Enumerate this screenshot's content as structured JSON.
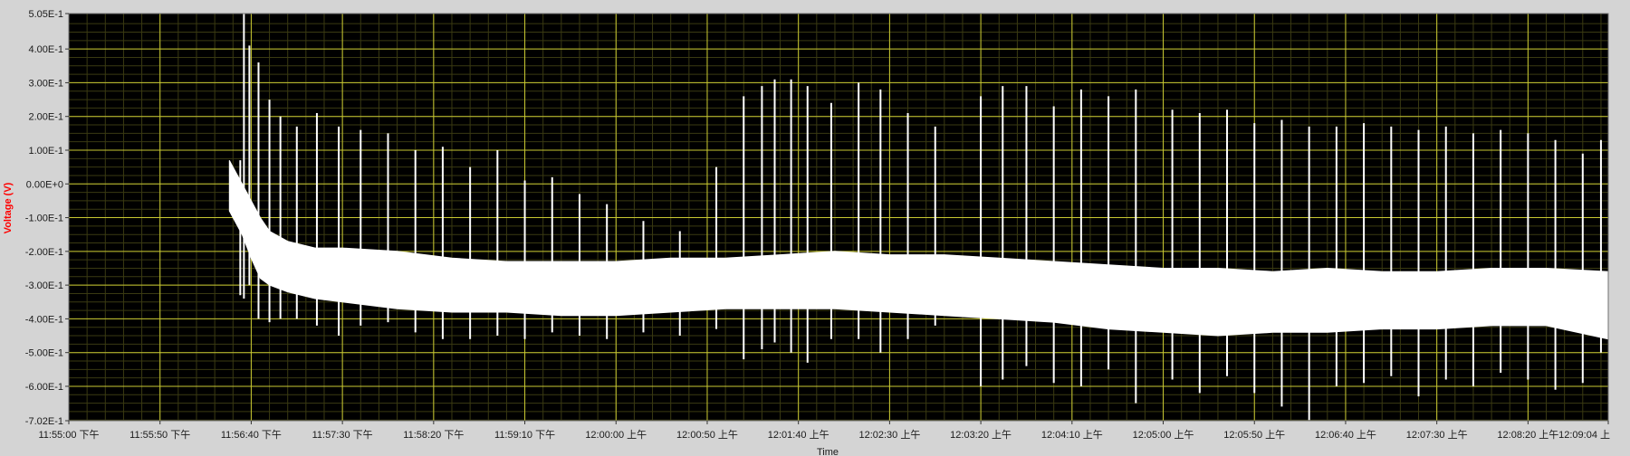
{
  "colors": {
    "frame": "#d4d4d4",
    "plot_background": "#000000",
    "major_grid": "#c8c832",
    "minor_grid": "#3a3a12",
    "trace": "#ffffff",
    "ylabel": "#ff0000"
  },
  "chart_data": {
    "type": "line",
    "title": "",
    "xlabel": "Time",
    "ylabel": "Voltage (V)",
    "ylim": [
      -0.702,
      0.505
    ],
    "y_ticks": [
      {
        "value": 0.505,
        "label": "5.05E-1"
      },
      {
        "value": 0.4,
        "label": "4.00E-1"
      },
      {
        "value": 0.3,
        "label": "3.00E-1"
      },
      {
        "value": 0.2,
        "label": "2.00E-1"
      },
      {
        "value": 0.1,
        "label": "1.00E-1"
      },
      {
        "value": 0.0,
        "label": "0.00E+0"
      },
      {
        "value": -0.1,
        "label": "-1.00E-1"
      },
      {
        "value": -0.2,
        "label": "-2.00E-1"
      },
      {
        "value": -0.3,
        "label": "-3.00E-1"
      },
      {
        "value": -0.4,
        "label": "-4.00E-1"
      },
      {
        "value": -0.5,
        "label": "-5.00E-1"
      },
      {
        "value": -0.6,
        "label": "-6.00E-1"
      },
      {
        "value": -0.702,
        "label": "-7.02E-1"
      }
    ],
    "x_ticks": [
      {
        "time": "23:55:00",
        "label": "11:55:00 下午"
      },
      {
        "time": "23:55:50",
        "label": "11:55:50 下午"
      },
      {
        "time": "23:56:40",
        "label": "11:56:40 下午"
      },
      {
        "time": "23:57:30",
        "label": "11:57:30 下午"
      },
      {
        "time": "23:58:20",
        "label": "11:58:20 下午"
      },
      {
        "time": "23:59:10",
        "label": "11:59:10 下午"
      },
      {
        "time": "24:00:00",
        "label": "12:00:00 上午"
      },
      {
        "time": "24:00:50",
        "label": "12:00:50 上午"
      },
      {
        "time": "24:01:40",
        "label": "12:01:40 上午"
      },
      {
        "time": "24:02:30",
        "label": "12:02:30 上午"
      },
      {
        "time": "24:03:20",
        "label": "12:03:20 上午"
      },
      {
        "time": "24:04:10",
        "label": "12:04:10 上午"
      },
      {
        "time": "24:05:00",
        "label": "12:05:00 上午"
      },
      {
        "time": "24:05:50",
        "label": "12:05:50 上午"
      },
      {
        "time": "24:06:40",
        "label": "12:06:40 上午"
      },
      {
        "time": "24:07:30",
        "label": "12:07:30 上午"
      },
      {
        "time": "24:08:20",
        "label": "12:08:20 上午"
      },
      {
        "time": "24:09:04",
        "label": "12:09:04 上"
      }
    ],
    "xlim": [
      "23:55:00",
      "24:09:04"
    ],
    "grid": true,
    "series": [
      {
        "band_upper": [
          {
            "t": "23:56:28",
            "v": 0.07
          },
          {
            "t": "23:56:35",
            "v": 0.0
          },
          {
            "t": "23:56:40",
            "v": -0.05
          },
          {
            "t": "23:56:45",
            "v": -0.1
          },
          {
            "t": "23:56:50",
            "v": -0.14
          },
          {
            "t": "23:57:00",
            "v": -0.17
          },
          {
            "t": "23:57:15",
            "v": -0.19
          },
          {
            "t": "23:57:30",
            "v": -0.19
          },
          {
            "t": "23:58:00",
            "v": -0.2
          },
          {
            "t": "23:58:30",
            "v": -0.22
          },
          {
            "t": "23:59:00",
            "v": -0.23
          },
          {
            "t": "23:59:30",
            "v": -0.23
          },
          {
            "t": "24:00:00",
            "v": -0.23
          },
          {
            "t": "24:00:30",
            "v": -0.22
          },
          {
            "t": "24:01:00",
            "v": -0.22
          },
          {
            "t": "24:01:30",
            "v": -0.21
          },
          {
            "t": "24:02:00",
            "v": -0.2
          },
          {
            "t": "24:02:30",
            "v": -0.21
          },
          {
            "t": "24:03:00",
            "v": -0.21
          },
          {
            "t": "24:03:30",
            "v": -0.22
          },
          {
            "t": "24:04:00",
            "v": -0.23
          },
          {
            "t": "24:04:30",
            "v": -0.24
          },
          {
            "t": "24:05:00",
            "v": -0.25
          },
          {
            "t": "24:05:30",
            "v": -0.25
          },
          {
            "t": "24:06:00",
            "v": -0.26
          },
          {
            "t": "24:06:30",
            "v": -0.25
          },
          {
            "t": "24:07:00",
            "v": -0.26
          },
          {
            "t": "24:07:30",
            "v": -0.26
          },
          {
            "t": "24:08:00",
            "v": -0.25
          },
          {
            "t": "24:08:30",
            "v": -0.25
          },
          {
            "t": "24:09:04",
            "v": -0.26
          }
        ],
        "band_lower": [
          {
            "t": "23:56:28",
            "v": -0.08
          },
          {
            "t": "23:56:35",
            "v": -0.15
          },
          {
            "t": "23:56:40",
            "v": -0.22
          },
          {
            "t": "23:56:45",
            "v": -0.28
          },
          {
            "t": "23:56:50",
            "v": -0.3
          },
          {
            "t": "23:57:00",
            "v": -0.32
          },
          {
            "t": "23:57:15",
            "v": -0.34
          },
          {
            "t": "23:57:30",
            "v": -0.35
          },
          {
            "t": "23:58:00",
            "v": -0.37
          },
          {
            "t": "23:58:30",
            "v": -0.38
          },
          {
            "t": "23:59:00",
            "v": -0.38
          },
          {
            "t": "23:59:30",
            "v": -0.39
          },
          {
            "t": "24:00:00",
            "v": -0.39
          },
          {
            "t": "24:00:30",
            "v": -0.38
          },
          {
            "t": "24:01:00",
            "v": -0.37
          },
          {
            "t": "24:01:30",
            "v": -0.37
          },
          {
            "t": "24:02:00",
            "v": -0.37
          },
          {
            "t": "24:02:30",
            "v": -0.38
          },
          {
            "t": "24:03:00",
            "v": -0.39
          },
          {
            "t": "24:03:30",
            "v": -0.4
          },
          {
            "t": "24:04:00",
            "v": -0.41
          },
          {
            "t": "24:04:30",
            "v": -0.43
          },
          {
            "t": "24:05:00",
            "v": -0.44
          },
          {
            "t": "24:05:30",
            "v": -0.45
          },
          {
            "t": "24:06:00",
            "v": -0.44
          },
          {
            "t": "24:06:30",
            "v": -0.44
          },
          {
            "t": "24:07:00",
            "v": -0.43
          },
          {
            "t": "24:07:30",
            "v": -0.43
          },
          {
            "t": "24:08:00",
            "v": -0.42
          },
          {
            "t": "24:08:30",
            "v": -0.42
          },
          {
            "t": "24:09:04",
            "v": -0.46
          }
        ],
        "spikes": [
          {
            "t": "23:56:34",
            "high": 0.07,
            "low": -0.33
          },
          {
            "t": "23:56:36",
            "high": 0.505,
            "low": -0.34
          },
          {
            "t": "23:56:39",
            "high": 0.41,
            "low": -0.3
          },
          {
            "t": "23:56:44",
            "high": 0.36,
            "low": -0.4
          },
          {
            "t": "23:56:50",
            "high": 0.25,
            "low": -0.41
          },
          {
            "t": "23:56:56",
            "high": 0.2,
            "low": -0.4
          },
          {
            "t": "23:57:05",
            "high": 0.17,
            "low": -0.4
          },
          {
            "t": "23:57:16",
            "high": 0.21,
            "low": -0.42
          },
          {
            "t": "23:57:28",
            "high": 0.17,
            "low": -0.45
          },
          {
            "t": "23:57:40",
            "high": 0.16,
            "low": -0.42
          },
          {
            "t": "23:57:55",
            "high": 0.15,
            "low": -0.41
          },
          {
            "t": "23:58:10",
            "high": 0.1,
            "low": -0.44
          },
          {
            "t": "23:58:25",
            "high": 0.11,
            "low": -0.46
          },
          {
            "t": "23:58:40",
            "high": 0.05,
            "low": -0.46
          },
          {
            "t": "23:58:55",
            "high": 0.1,
            "low": -0.45
          },
          {
            "t": "23:59:10",
            "high": 0.01,
            "low": -0.46
          },
          {
            "t": "23:59:25",
            "high": 0.02,
            "low": -0.44
          },
          {
            "t": "23:59:40",
            "high": -0.03,
            "low": -0.45
          },
          {
            "t": "23:59:55",
            "high": -0.06,
            "low": -0.46
          },
          {
            "t": "24:00:15",
            "high": -0.11,
            "low": -0.44
          },
          {
            "t": "24:00:35",
            "high": -0.14,
            "low": -0.45
          },
          {
            "t": "24:00:55",
            "high": 0.05,
            "low": -0.43
          },
          {
            "t": "24:01:10",
            "high": 0.26,
            "low": -0.52
          },
          {
            "t": "24:01:20",
            "high": 0.29,
            "low": -0.49
          },
          {
            "t": "24:01:27",
            "high": 0.31,
            "low": -0.47
          },
          {
            "t": "24:01:36",
            "high": 0.31,
            "low": -0.5
          },
          {
            "t": "24:01:45",
            "high": 0.29,
            "low": -0.53
          },
          {
            "t": "24:01:58",
            "high": 0.24,
            "low": -0.46
          },
          {
            "t": "24:02:13",
            "high": 0.3,
            "low": -0.46
          },
          {
            "t": "24:02:25",
            "high": 0.28,
            "low": -0.5
          },
          {
            "t": "24:02:40",
            "high": 0.21,
            "low": -0.46
          },
          {
            "t": "24:02:55",
            "high": 0.17,
            "low": -0.42
          },
          {
            "t": "24:03:20",
            "high": 0.26,
            "low": -0.6
          },
          {
            "t": "24:03:32",
            "high": 0.29,
            "low": -0.58
          },
          {
            "t": "24:03:45",
            "high": 0.29,
            "low": -0.54
          },
          {
            "t": "24:04:00",
            "high": 0.23,
            "low": -0.59
          },
          {
            "t": "24:04:15",
            "high": 0.28,
            "low": -0.6
          },
          {
            "t": "24:04:30",
            "high": 0.26,
            "low": -0.55
          },
          {
            "t": "24:04:45",
            "high": 0.28,
            "low": -0.65
          },
          {
            "t": "24:05:05",
            "high": 0.22,
            "low": -0.58
          },
          {
            "t": "24:05:20",
            "high": 0.21,
            "low": -0.62
          },
          {
            "t": "24:05:35",
            "high": 0.22,
            "low": -0.57
          },
          {
            "t": "24:05:50",
            "high": 0.18,
            "low": -0.62
          },
          {
            "t": "24:06:05",
            "high": 0.19,
            "low": -0.66
          },
          {
            "t": "24:06:20",
            "high": 0.17,
            "low": -0.7
          },
          {
            "t": "24:06:35",
            "high": 0.17,
            "low": -0.6
          },
          {
            "t": "24:06:50",
            "high": 0.18,
            "low": -0.59
          },
          {
            "t": "24:07:05",
            "high": 0.17,
            "low": -0.57
          },
          {
            "t": "24:07:20",
            "high": 0.16,
            "low": -0.63
          },
          {
            "t": "24:07:35",
            "high": 0.17,
            "low": -0.58
          },
          {
            "t": "24:07:50",
            "high": 0.15,
            "low": -0.6
          },
          {
            "t": "24:08:05",
            "high": 0.16,
            "low": -0.56
          },
          {
            "t": "24:08:20",
            "high": 0.15,
            "low": -0.58
          },
          {
            "t": "24:08:35",
            "high": 0.13,
            "low": -0.61
          },
          {
            "t": "24:08:50",
            "high": 0.09,
            "low": -0.59
          },
          {
            "t": "24:09:00",
            "high": 0.13,
            "low": -0.5
          }
        ]
      }
    ]
  }
}
